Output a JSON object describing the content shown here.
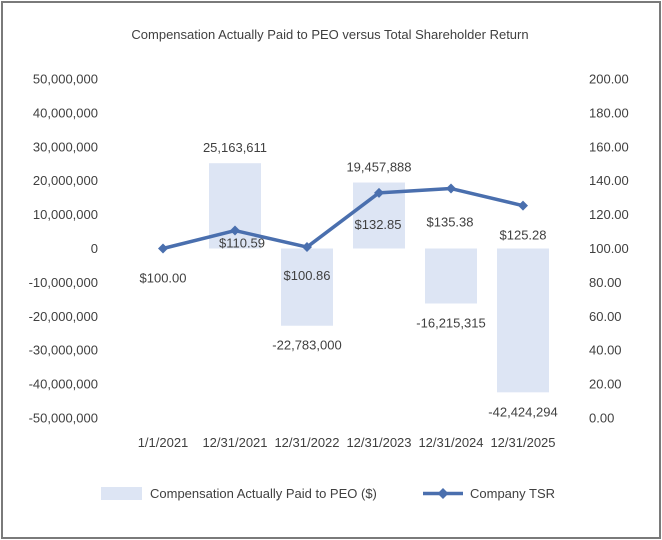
{
  "chart_data": {
    "type": "bar+line",
    "title": "Compensation Actually Paid to PEO versus Total Shareholder Return",
    "categories": [
      "1/1/2021",
      "12/31/2021",
      "12/31/2022",
      "12/31/2023",
      "12/31/2024",
      "12/31/2025"
    ],
    "left_axis": {
      "min": -50000000,
      "max": 50000000,
      "step": 10000000,
      "tick_labels": [
        "50,000,000",
        "40,000,000",
        "30,000,000",
        "20,000,000",
        "10,000,000",
        "0",
        "-10,000,000",
        "-20,000,000",
        "-30,000,000",
        "-40,000,000",
        "-50,000,000"
      ]
    },
    "right_axis": {
      "min": 0,
      "max": 200,
      "step": 20,
      "tick_labels": [
        "200.00",
        "180.00",
        "160.00",
        "140.00",
        "120.00",
        "100.00",
        "80.00",
        "60.00",
        "40.00",
        "20.00",
        "0.00"
      ]
    },
    "series": [
      {
        "name": "Compensation Actually Paid to PEO ($)",
        "type": "bar",
        "axis": "left",
        "color": "#dde5f4",
        "values": [
          null,
          25163611,
          -22783000,
          19457888,
          -16215315,
          -42424294
        ],
        "labels": [
          "",
          "25,163,611",
          "-22,783,000",
          "19,457,888",
          "-16,215,315",
          "-42,424,294"
        ]
      },
      {
        "name": "Company TSR",
        "type": "line",
        "axis": "right",
        "color": "#4a6fae",
        "values": [
          100.0,
          110.59,
          100.86,
          132.85,
          135.38,
          125.28
        ],
        "labels": [
          "$100.00",
          "$110.59",
          "$100.86",
          "$132.85",
          "$135.38",
          "$125.28"
        ]
      }
    ],
    "legend": {
      "position": "bottom",
      "items": [
        "Compensation Actually Paid to PEO ($)",
        "Company TSR"
      ]
    },
    "grid": false
  }
}
